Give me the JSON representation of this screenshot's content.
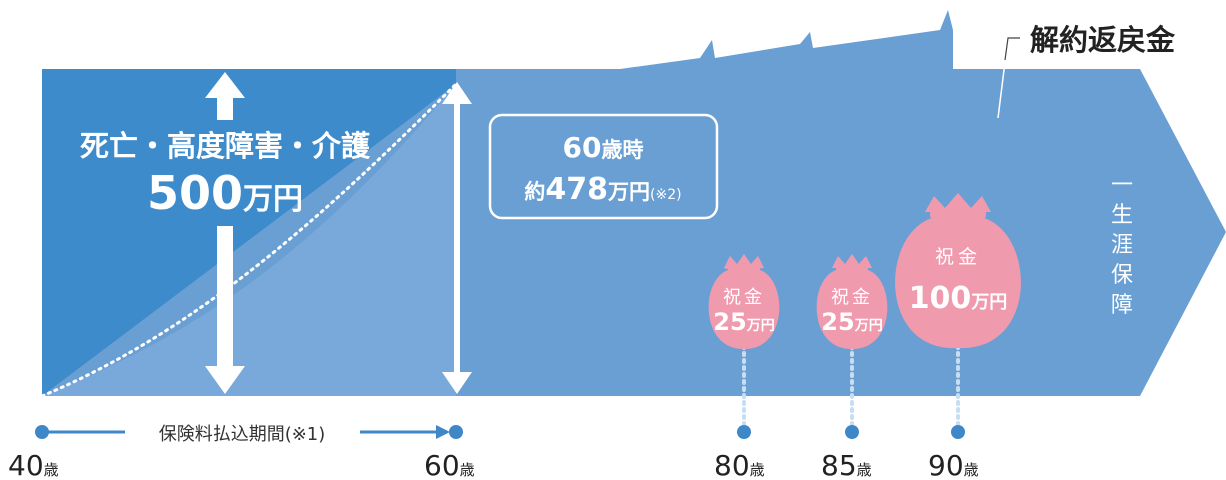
{
  "surrender_value_label": "解約返戻金",
  "death_benefit": {
    "label": "死亡・高度障害・介護",
    "amount": "500",
    "unit": "万円"
  },
  "value_at_60": {
    "line1_num": "60",
    "line1_unit": "歳時",
    "line2_prefix": "約",
    "line2_num": "478",
    "line2_unit": "万円",
    "note": "(※2)"
  },
  "lifetime_coverage": [
    "一",
    "生",
    "涯",
    "保",
    "障"
  ],
  "gifts": [
    {
      "label": "祝金",
      "amount": "25",
      "unit": "万円",
      "age": "80",
      "age_unit": "歳"
    },
    {
      "label": "祝金",
      "amount": "25",
      "unit": "万円",
      "age": "85",
      "age_unit": "歳"
    },
    {
      "label": "祝金",
      "amount": "100",
      "unit": "万円",
      "age": "90",
      "age_unit": "歳"
    }
  ],
  "premium_period_label": "保険料払込期間(※1)",
  "start_age": {
    "value": "40",
    "unit": "歳"
  },
  "end_age": {
    "value": "60",
    "unit": "歳"
  },
  "colors": {
    "dark_blue": "#3d8bcb",
    "medium_blue": "#6a9fd4",
    "light_blue": "#79a9db",
    "pink": "#f09aae",
    "pink_text": "#e5677f",
    "text_dark": "#222222",
    "point_blue": "#3f88c8"
  }
}
